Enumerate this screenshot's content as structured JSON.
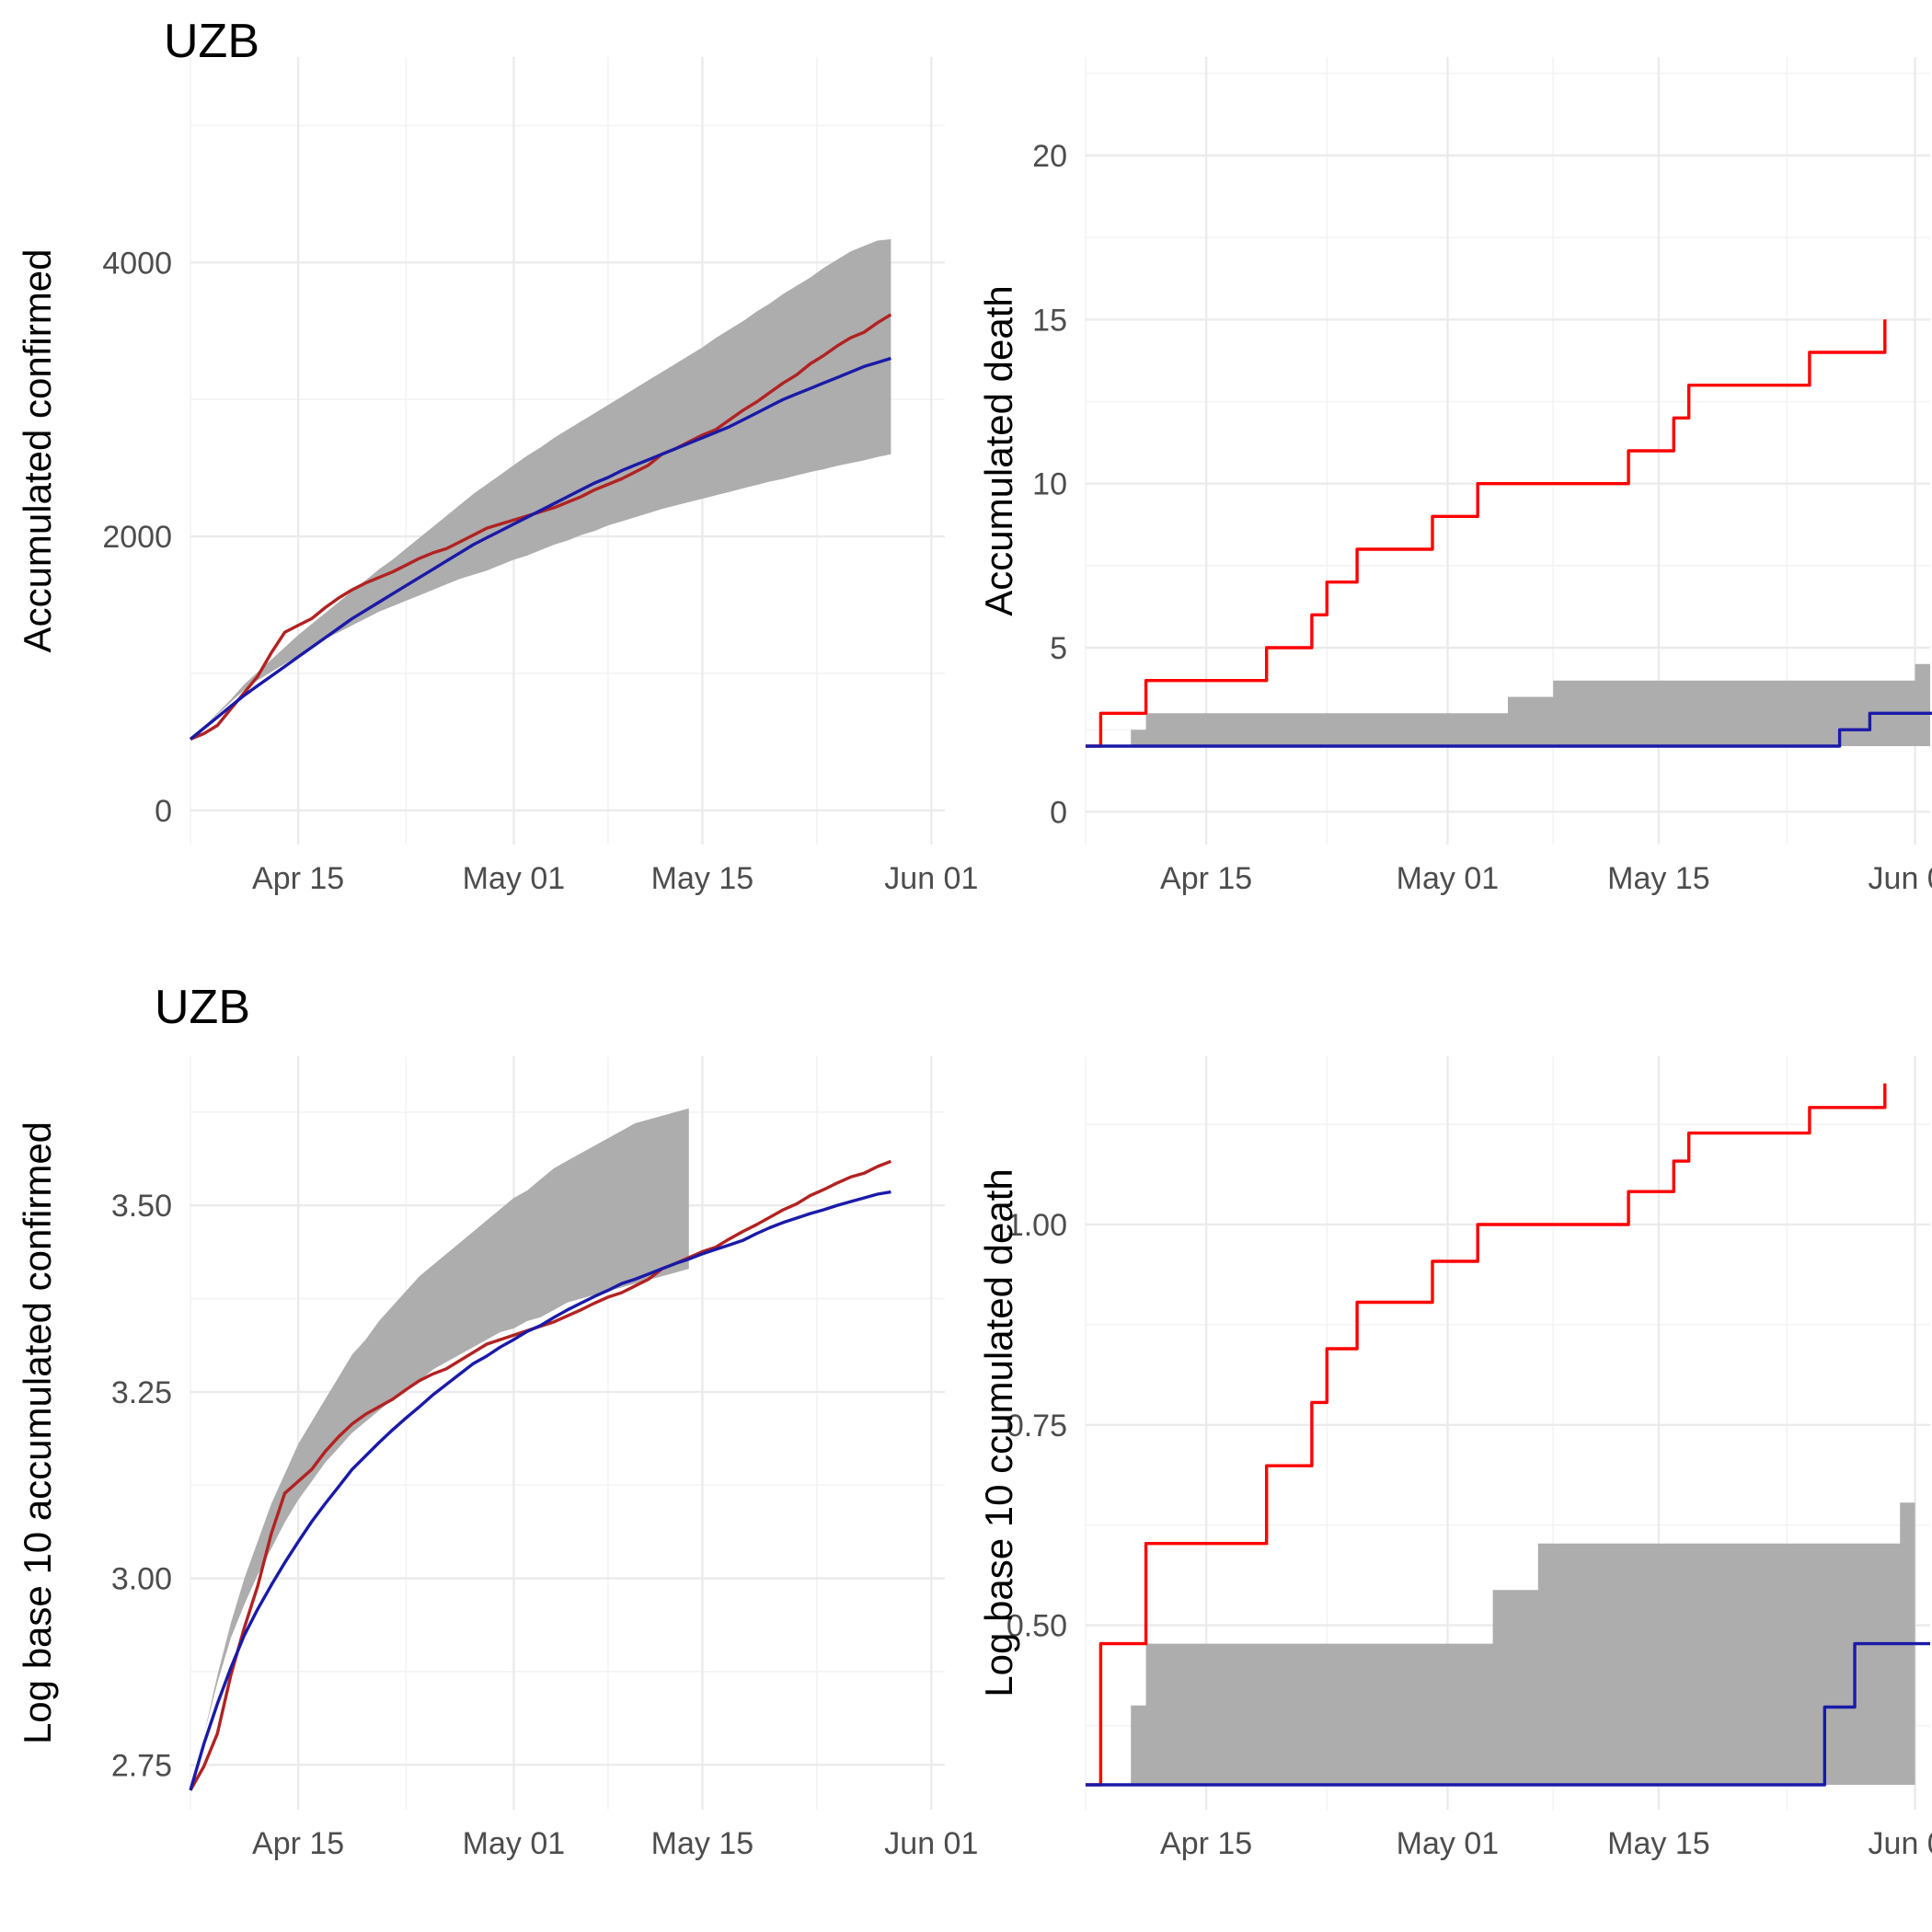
{
  "colors": {
    "band": "#adadad",
    "observed_confirmed": "#b22222",
    "observed_death": "#ff0000",
    "model": "#1a1aa8",
    "grid": "#ebebeb"
  },
  "date_ticks": [
    "Apr 15",
    "May 01",
    "May 15",
    "Jun 01"
  ],
  "chart_data": [
    {
      "type": "line",
      "title": "UZB",
      "xlabel": "",
      "ylabel": "Accumulated confirmed",
      "x_domain": [
        "2020-04-07",
        "2020-06-02"
      ],
      "ylim": [
        -250,
        5500
      ],
      "y_ticks": [
        0,
        2000,
        4000
      ],
      "y_tick_labels": [
        "0",
        "2000",
        "4000"
      ],
      "grid": true,
      "start_date": "2020-04-07",
      "series": [
        {
          "role": "band",
          "lower": [
            520,
            610,
            700,
            790,
            880,
            950,
            1010,
            1070,
            1130,
            1190,
            1250,
            1300,
            1350,
            1400,
            1450,
            1490,
            1530,
            1570,
            1610,
            1650,
            1690,
            1720,
            1750,
            1790,
            1830,
            1860,
            1900,
            1940,
            1970,
            2010,
            2040,
            2080,
            2110,
            2140,
            2170,
            2200,
            2225,
            2250,
            2275,
            2300,
            2325,
            2350,
            2375,
            2400,
            2420,
            2445,
            2470,
            2490,
            2515,
            2535,
            2555,
            2580,
            2600
          ],
          "upper": [
            520,
            610,
            710,
            810,
            920,
            1010,
            1100,
            1190,
            1280,
            1360,
            1440,
            1520,
            1600,
            1680,
            1760,
            1830,
            1910,
            1990,
            2070,
            2150,
            2230,
            2310,
            2380,
            2450,
            2520,
            2590,
            2650,
            2720,
            2780,
            2840,
            2900,
            2960,
            3020,
            3080,
            3140,
            3200,
            3260,
            3320,
            3380,
            3450,
            3510,
            3570,
            3640,
            3700,
            3770,
            3830,
            3890,
            3960,
            4020,
            4080,
            4120,
            4160,
            4170
          ]
        },
        {
          "role": "observed",
          "values": [
            520,
            560,
            620,
            740,
            860,
            980,
            1150,
            1300,
            1350,
            1400,
            1480,
            1550,
            1610,
            1660,
            1700,
            1740,
            1790,
            1840,
            1880,
            1910,
            1960,
            2010,
            2060,
            2090,
            2120,
            2150,
            2180,
            2210,
            2250,
            2290,
            2340,
            2380,
            2420,
            2470,
            2520,
            2600,
            2640,
            2690,
            2740,
            2780,
            2850,
            2920,
            2980,
            3050,
            3120,
            3180,
            3260,
            3320,
            3390,
            3450,
            3490,
            3560,
            3620
          ]
        },
        {
          "role": "model",
          "values": [
            520,
            600,
            680,
            760,
            840,
            910,
            980,
            1050,
            1120,
            1190,
            1260,
            1330,
            1400,
            1460,
            1520,
            1580,
            1640,
            1700,
            1760,
            1820,
            1880,
            1940,
            1990,
            2040,
            2090,
            2140,
            2190,
            2240,
            2290,
            2340,
            2390,
            2430,
            2480,
            2520,
            2560,
            2600,
            2640,
            2680,
            2720,
            2760,
            2800,
            2850,
            2900,
            2950,
            3000,
            3040,
            3080,
            3120,
            3160,
            3200,
            3240,
            3270,
            3300
          ]
        }
      ]
    },
    {
      "type": "line",
      "title": "",
      "xlabel": "",
      "ylabel": "Accumulated death",
      "x_domain": [
        "2020-04-07",
        "2020-06-02"
      ],
      "ylim": [
        -1.0,
        23.0
      ],
      "y_ticks": [
        0,
        5,
        10,
        15,
        20
      ],
      "y_tick_labels": [
        "0",
        "5",
        "10",
        "15",
        "20"
      ],
      "grid": true,
      "start_date": "2020-04-07",
      "series": [
        {
          "role": "band",
          "lower": [
            2,
            2,
            2,
            2,
            2,
            2,
            2,
            2,
            2,
            2,
            2,
            2,
            2,
            2,
            2,
            2,
            2,
            2,
            2,
            2,
            2,
            2,
            2,
            2,
            2,
            2,
            2,
            2,
            2,
            2,
            2,
            2,
            2,
            2,
            2,
            2,
            2,
            2,
            2,
            2,
            2,
            2,
            2,
            2,
            2,
            2,
            2,
            2,
            2,
            2,
            2,
            2,
            2,
            2,
            2,
            2,
            2
          ],
          "upper": [
            2,
            2,
            2,
            2.5,
            3,
            3,
            3,
            3,
            3,
            3,
            3,
            3,
            3,
            3,
            3,
            3,
            3,
            3,
            3,
            3,
            3,
            3,
            3,
            3,
            3,
            3,
            3,
            3,
            3.5,
            3.5,
            3.5,
            4,
            4,
            4,
            4,
            4,
            4,
            4,
            4,
            4,
            4,
            4,
            4,
            4,
            4,
            4,
            4,
            4,
            4,
            4,
            4,
            4,
            4,
            4,
            4,
            4.5,
            4.5
          ]
        },
        {
          "role": "observed",
          "values": [
            2,
            3,
            3,
            3,
            4,
            4,
            4,
            4,
            4,
            4,
            4,
            4,
            5,
            5,
            5,
            6,
            7,
            7,
            8,
            8,
            8,
            8,
            8,
            9,
            9,
            9,
            10,
            10,
            10,
            10,
            10,
            10,
            10,
            10,
            10,
            10,
            11,
            11,
            11,
            12,
            13,
            13,
            13,
            13,
            13,
            13,
            13,
            13,
            14,
            14,
            14,
            14,
            14,
            15
          ]
        },
        {
          "role": "model",
          "values": [
            2,
            2,
            2,
            2,
            2,
            2,
            2,
            2,
            2,
            2,
            2,
            2,
            2,
            2,
            2,
            2,
            2,
            2,
            2,
            2,
            2,
            2,
            2,
            2,
            2,
            2,
            2,
            2,
            2,
            2,
            2,
            2,
            2,
            2,
            2,
            2,
            2,
            2,
            2,
            2,
            2,
            2,
            2,
            2,
            2,
            2,
            2,
            2,
            2,
            2,
            2.5,
            2.5,
            3,
            3,
            3,
            3,
            3,
            3,
            3
          ]
        }
      ]
    },
    {
      "type": "line",
      "title": "UZB",
      "xlabel": "",
      "ylabel": "Log base 10 accumulated confirmed",
      "x_domain": [
        "2020-04-07",
        "2020-06-02"
      ],
      "ylim": [
        2.69,
        3.7
      ],
      "y_ticks": [
        2.75,
        3.0,
        3.25,
        3.5
      ],
      "y_tick_labels": [
        "2.75",
        "3.00",
        "3.25",
        "3.50"
      ],
      "grid": true,
      "start_date": "2020-04-07",
      "series": [
        {
          "role": "band",
          "lower": [
            2.716,
            2.79,
            2.86,
            2.92,
            2.965,
            3.005,
            3.04,
            3.075,
            3.105,
            3.13,
            3.155,
            3.175,
            3.195,
            3.21,
            3.225,
            3.24,
            3.255,
            3.265,
            3.28,
            3.29,
            3.3,
            3.31,
            3.32,
            3.33,
            3.335,
            3.345,
            3.35,
            3.36,
            3.37,
            3.375,
            3.38,
            3.385,
            3.39,
            3.395,
            3.4,
            3.405,
            3.41,
            3.415
          ],
          "upper": [
            2.716,
            2.79,
            2.87,
            2.94,
            3.0,
            3.05,
            3.1,
            3.14,
            3.18,
            3.21,
            3.24,
            3.27,
            3.3,
            3.32,
            3.345,
            3.365,
            3.385,
            3.405,
            3.42,
            3.435,
            3.45,
            3.465,
            3.48,
            3.495,
            3.51,
            3.52,
            3.535,
            3.55,
            3.56,
            3.57,
            3.58,
            3.59,
            3.6,
            3.61,
            3.615,
            3.62,
            3.625,
            3.63
          ]
        },
        {
          "role": "observed",
          "values": [
            2.716,
            2.748,
            2.792,
            2.87,
            2.934,
            2.99,
            3.06,
            3.114,
            3.13,
            3.146,
            3.17,
            3.19,
            3.207,
            3.22,
            3.23,
            3.24,
            3.253,
            3.265,
            3.274,
            3.281,
            3.292,
            3.303,
            3.314,
            3.32,
            3.326,
            3.332,
            3.338,
            3.344,
            3.352,
            3.36,
            3.369,
            3.377,
            3.383,
            3.392,
            3.401,
            3.415,
            3.422,
            3.43,
            3.438,
            3.444,
            3.455,
            3.465,
            3.474,
            3.484,
            3.494,
            3.502,
            3.513,
            3.521,
            3.53,
            3.538,
            3.543,
            3.552,
            3.559
          ]
        },
        {
          "role": "model",
          "values": [
            2.716,
            2.778,
            2.832,
            2.88,
            2.924,
            2.959,
            2.991,
            3.021,
            3.049,
            3.076,
            3.1,
            3.123,
            3.146,
            3.164,
            3.182,
            3.199,
            3.215,
            3.23,
            3.246,
            3.26,
            3.274,
            3.288,
            3.298,
            3.31,
            3.32,
            3.331,
            3.339,
            3.35,
            3.36,
            3.369,
            3.378,
            3.386,
            3.395,
            3.401,
            3.408,
            3.415,
            3.422,
            3.428,
            3.435,
            3.441,
            3.447,
            3.453,
            3.462,
            3.47,
            3.477,
            3.483,
            3.489,
            3.494,
            3.5,
            3.505,
            3.51,
            3.515,
            3.518
          ]
        }
      ]
    },
    {
      "type": "line",
      "title": "",
      "xlabel": "",
      "ylabel": "Log base 10 ccumulated death",
      "x_domain": [
        "2020-04-07",
        "2020-06-02"
      ],
      "ylim": [
        0.27,
        1.21
      ],
      "y_ticks": [
        0.5,
        0.75,
        1.0
      ],
      "y_tick_labels": [
        "0.50",
        "0.75",
        "1.00"
      ],
      "grid": true,
      "start_date": "2020-04-07",
      "series": [
        {
          "role": "band",
          "lower": [
            0.301,
            0.301,
            0.301,
            0.301,
            0.301,
            0.301,
            0.301,
            0.301,
            0.301,
            0.301,
            0.301,
            0.301,
            0.301,
            0.301,
            0.301,
            0.301,
            0.301,
            0.301,
            0.301,
            0.301,
            0.301,
            0.301,
            0.301,
            0.301,
            0.301,
            0.301,
            0.301,
            0.301,
            0.301,
            0.301,
            0.301,
            0.301,
            0.301,
            0.301,
            0.301,
            0.301,
            0.301,
            0.301,
            0.301,
            0.301,
            0.301,
            0.301,
            0.301,
            0.301,
            0.301,
            0.301,
            0.301,
            0.301,
            0.301,
            0.301,
            0.301,
            0.301,
            0.301,
            0.301,
            0.301,
            0.301
          ],
          "upper": [
            0.301,
            0.301,
            0.301,
            0.4,
            0.477,
            0.477,
            0.477,
            0.477,
            0.477,
            0.477,
            0.477,
            0.477,
            0.477,
            0.477,
            0.477,
            0.477,
            0.477,
            0.477,
            0.477,
            0.477,
            0.477,
            0.477,
            0.477,
            0.477,
            0.477,
            0.477,
            0.477,
            0.544,
            0.544,
            0.544,
            0.602,
            0.602,
            0.602,
            0.602,
            0.602,
            0.602,
            0.602,
            0.602,
            0.602,
            0.602,
            0.602,
            0.602,
            0.602,
            0.602,
            0.602,
            0.602,
            0.602,
            0.602,
            0.602,
            0.602,
            0.602,
            0.602,
            0.602,
            0.602,
            0.653,
            0.653
          ]
        },
        {
          "role": "observed",
          "values": [
            0.301,
            0.477,
            0.477,
            0.477,
            0.602,
            0.602,
            0.602,
            0.602,
            0.602,
            0.602,
            0.602,
            0.602,
            0.699,
            0.699,
            0.699,
            0.778,
            0.845,
            0.845,
            0.903,
            0.903,
            0.903,
            0.903,
            0.903,
            0.954,
            0.954,
            0.954,
            1.0,
            1.0,
            1.0,
            1.0,
            1.0,
            1.0,
            1.0,
            1.0,
            1.0,
            1.0,
            1.041,
            1.041,
            1.041,
            1.079,
            1.114,
            1.114,
            1.114,
            1.114,
            1.114,
            1.114,
            1.114,
            1.114,
            1.146,
            1.146,
            1.146,
            1.146,
            1.146,
            1.176
          ]
        },
        {
          "role": "model",
          "values": [
            0.301,
            0.301,
            0.301,
            0.301,
            0.301,
            0.301,
            0.301,
            0.301,
            0.301,
            0.301,
            0.301,
            0.301,
            0.301,
            0.301,
            0.301,
            0.301,
            0.301,
            0.301,
            0.301,
            0.301,
            0.301,
            0.301,
            0.301,
            0.301,
            0.301,
            0.301,
            0.301,
            0.301,
            0.301,
            0.301,
            0.301,
            0.301,
            0.301,
            0.301,
            0.301,
            0.301,
            0.301,
            0.301,
            0.301,
            0.301,
            0.301,
            0.301,
            0.301,
            0.301,
            0.301,
            0.301,
            0.301,
            0.301,
            0.301,
            0.398,
            0.398,
            0.477,
            0.477,
            0.477,
            0.477,
            0.477,
            0.477
          ]
        }
      ]
    }
  ]
}
